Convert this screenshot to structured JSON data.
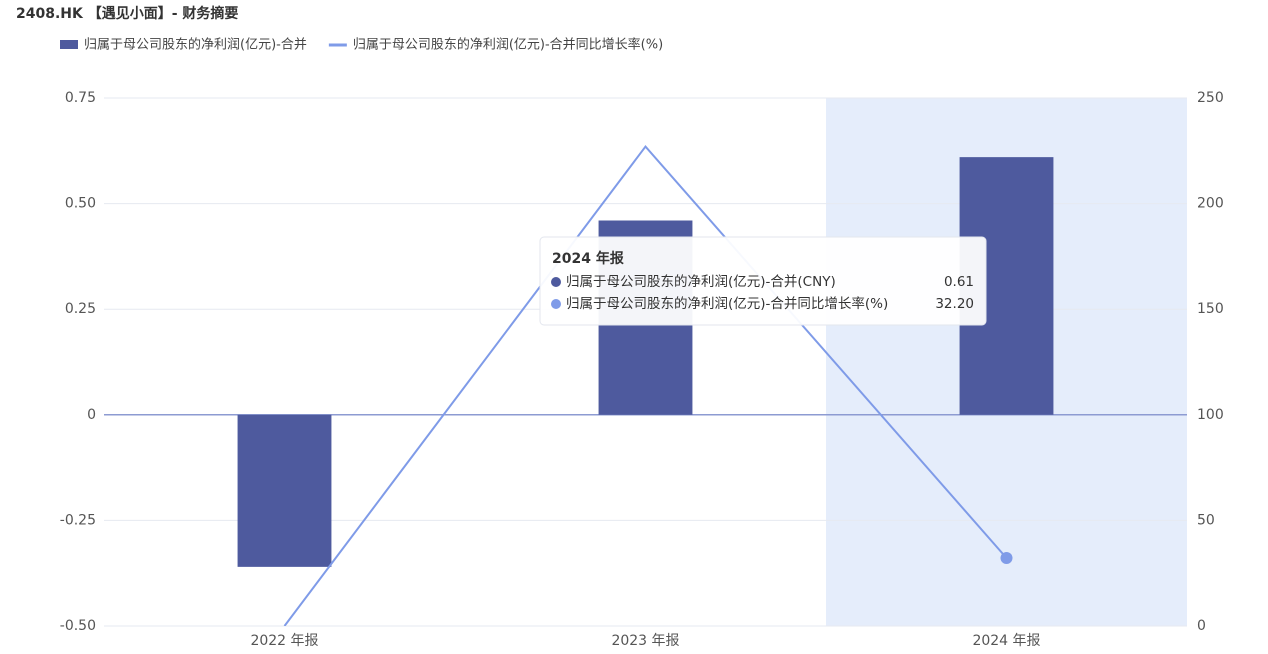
{
  "chart_data": {
    "type": "bar-line",
    "title": "2408.HK 【遇见小面】- 财务摘要",
    "categories": [
      "2022 年报",
      "2023 年报",
      "2024 年报"
    ],
    "series": [
      {
        "name": "归属于母公司股东的净利润(亿元)-合并",
        "type": "bar",
        "color": "#4e5a9e",
        "values": [
          -0.36,
          0.46,
          0.61
        ]
      },
      {
        "name": "归属于母公司股东的净利润(亿元)-合并同比增长率(%)",
        "type": "line",
        "axis": "y2",
        "color": "#7f9be8",
        "values": [
          0,
          227,
          32.2
        ]
      }
    ],
    "ylim": [
      -0.5,
      0.75
    ],
    "yticks": [
      {
        "value": -0.5,
        "label": "-0.50"
      },
      -0.25,
      0,
      0.25,
      {
        "value": 0.5,
        "label": "0.50"
      },
      0.75
    ],
    "y2lim": [
      0,
      250
    ],
    "y2ticks": [
      0,
      50,
      100,
      150,
      200,
      250
    ],
    "grid": true,
    "highlight_category": 2,
    "tooltip": {
      "title": "2024 年报",
      "rows": [
        {
          "name": "归属于母公司股东的净利润(亿元)-合并(CNY)",
          "value": "0.61"
        },
        {
          "name": "归属于母公司股东的净利润(亿元)-合并同比增长率(%)",
          "value": "32.20"
        }
      ]
    }
  }
}
